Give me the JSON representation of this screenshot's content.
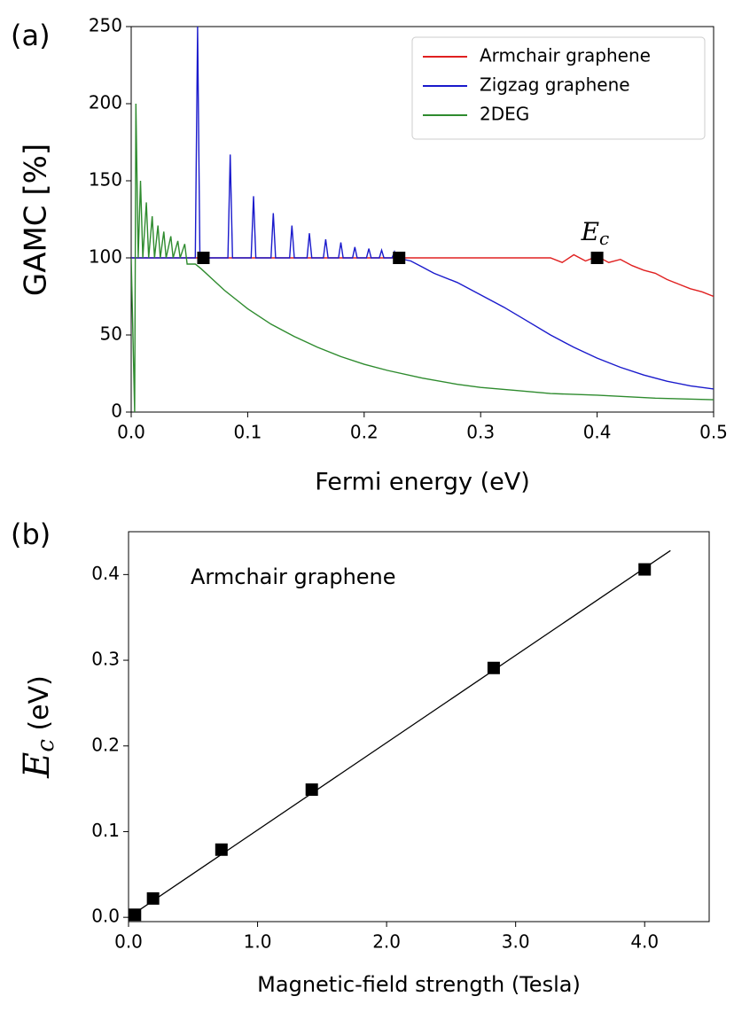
{
  "chart_data": [
    {
      "type": "line",
      "label": "(a)",
      "xlabel": "Fermi energy (eV)",
      "ylabel": "GAMC [%]",
      "xlim": [
        0,
        0.5
      ],
      "ylim": [
        0,
        250
      ],
      "xticks": [
        {
          "value": 0,
          "label": "0.0"
        },
        0.1,
        0.2,
        0.3,
        0.4,
        0.5
      ],
      "yticks": [
        0,
        50,
        100,
        150,
        200,
        250
      ],
      "legend": "upper right",
      "series": [
        {
          "name": "Armchair graphene",
          "color": "#e02020",
          "x": [
            0,
            0.36,
            0.37,
            0.38,
            0.39,
            0.4,
            0.41,
            0.42,
            0.43,
            0.44,
            0.45,
            0.46,
            0.47,
            0.48,
            0.49,
            0.5
          ],
          "values": [
            100,
            100,
            97,
            102,
            98,
            101,
            97,
            99,
            95,
            92,
            90,
            86,
            83,
            80,
            78,
            75
          ]
        },
        {
          "name": "Zigzag graphene",
          "color": "#1a1acc",
          "x": [
            0,
            0.055,
            0.057,
            0.059,
            0.083,
            0.085,
            0.087,
            0.103,
            0.105,
            0.107,
            0.12,
            0.122,
            0.124,
            0.136,
            0.138,
            0.14,
            0.151,
            0.153,
            0.155,
            0.165,
            0.167,
            0.169,
            0.178,
            0.18,
            0.182,
            0.19,
            0.192,
            0.194,
            0.202,
            0.204,
            0.206,
            0.213,
            0.215,
            0.217,
            0.224,
            0.226,
            0.228,
            0.24,
            0.25,
            0.26,
            0.28,
            0.3,
            0.32,
            0.34,
            0.36,
            0.38,
            0.4,
            0.42,
            0.44,
            0.46,
            0.48,
            0.5
          ],
          "values": [
            100,
            100,
            250,
            100,
            100,
            167,
            100,
            100,
            140,
            100,
            100,
            129,
            100,
            100,
            121,
            100,
            100,
            116,
            100,
            100,
            112,
            100,
            100,
            110,
            100,
            100,
            107,
            100,
            100,
            106,
            100,
            100,
            105,
            100,
            100,
            104,
            100,
            98,
            94,
            90,
            84,
            76,
            68,
            59,
            50,
            42,
            35,
            29,
            24,
            20,
            17,
            15
          ]
        },
        {
          "name": "2DEG",
          "color": "#2e8b2e",
          "x": [
            0,
            0.003,
            0.004,
            0.006,
            0.008,
            0.01,
            0.013,
            0.015,
            0.018,
            0.02,
            0.023,
            0.025,
            0.028,
            0.03,
            0.034,
            0.036,
            0.04,
            0.042,
            0.046,
            0.048,
            0.055,
            0.06,
            0.07,
            0.08,
            0.09,
            0.1,
            0.12,
            0.14,
            0.16,
            0.18,
            0.2,
            0.22,
            0.25,
            0.28,
            0.3,
            0.33,
            0.36,
            0.4,
            0.45,
            0.5
          ],
          "values": [
            100,
            0,
            200,
            100,
            150,
            100,
            136,
            100,
            127,
            100,
            121,
            100,
            117,
            100,
            114,
            100,
            111,
            100,
            109,
            96,
            96,
            93,
            86,
            79,
            73,
            67,
            57,
            49,
            42,
            36,
            31,
            27,
            22,
            18,
            16,
            14,
            12,
            11,
            9,
            8
          ]
        }
      ],
      "markers": {
        "x": [
          0.062,
          0.23,
          0.4
        ],
        "values": [
          100,
          100,
          100
        ]
      },
      "annotation": {
        "main": "E",
        "sub": "c"
      }
    },
    {
      "type": "scatter",
      "label": "(b)",
      "xlabel": "Magnetic-field strength (Tesla)",
      "ylabel": {
        "main": "E",
        "sub": "c",
        "rest": " (eV)"
      },
      "text": "Armchair graphene",
      "xlim": [
        0,
        4.5
      ],
      "ylim": [
        -0.005,
        0.45
      ],
      "xticks": [
        {
          "value": 0,
          "label": "0.0"
        },
        {
          "value": 1,
          "label": "1.0"
        },
        {
          "value": 2,
          "label": "2.0"
        },
        {
          "value": 3,
          "label": "3.0"
        },
        {
          "value": 4,
          "label": "4.0"
        }
      ],
      "yticks": [
        {
          "value": 0,
          "label": "0.0"
        },
        0.1,
        0.2,
        0.3,
        0.4
      ],
      "x": [
        0.05,
        0.19,
        0.72,
        1.42,
        2.83,
        4.0
      ],
      "values": [
        0.003,
        0.022,
        0.079,
        0.149,
        0.291,
        0.406
      ],
      "color": "#000000",
      "fit": {
        "x": [
          0,
          4.2
        ],
        "values": [
          0,
          0.428
        ]
      }
    }
  ]
}
